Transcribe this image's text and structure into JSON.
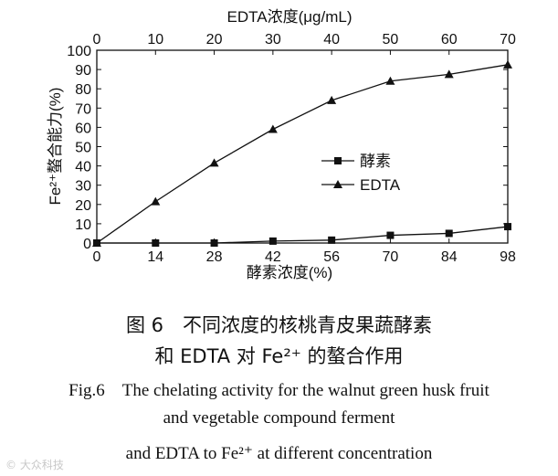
{
  "chart_data": {
    "type": "line",
    "top_axis": {
      "label": "EDTA浓度(μg/mL)",
      "ticks": [
        0,
        10,
        20,
        30,
        40,
        50,
        60,
        70
      ],
      "range": [
        0,
        70
      ]
    },
    "bottom_axis": {
      "label": "酵素浓度(%)",
      "ticks": [
        0,
        14,
        28,
        42,
        56,
        70,
        84,
        98
      ],
      "range": [
        0,
        98
      ]
    },
    "y_axis": {
      "label": "Fe²⁺螯合能力(%)",
      "ticks": [
        0,
        10,
        20,
        30,
        40,
        50,
        60,
        70,
        80,
        90,
        100
      ],
      "range": [
        0,
        100
      ]
    },
    "grid": false,
    "legend_placement": "center-right",
    "series": [
      {
        "name": "酵素",
        "marker": "square",
        "axis": "bottom",
        "x": [
          0,
          14,
          28,
          42,
          56,
          70,
          84,
          98
        ],
        "y": [
          0,
          0,
          0,
          1,
          1.5,
          4,
          5,
          8.5
        ]
      },
      {
        "name": "EDTA",
        "marker": "triangle",
        "axis": "top",
        "x": [
          0,
          10,
          20,
          30,
          40,
          50,
          60,
          70
        ],
        "y": [
          0,
          21.5,
          41.5,
          59,
          74,
          84,
          87.5,
          92.5
        ]
      }
    ]
  },
  "caption": {
    "cn_line1": "图 6　不同浓度的核桃青皮果蔬酵素",
    "cn_line2": "和 EDTA 对 Fe²⁺ 的螯合作用",
    "en_line1": "Fig.6　The chelating activity for the walnut green husk fruit",
    "en_line2": "and vegetable compound ferment",
    "en_line3": "and EDTA to Fe²⁺ at different concentration"
  },
  "watermark": "© 大众科技"
}
